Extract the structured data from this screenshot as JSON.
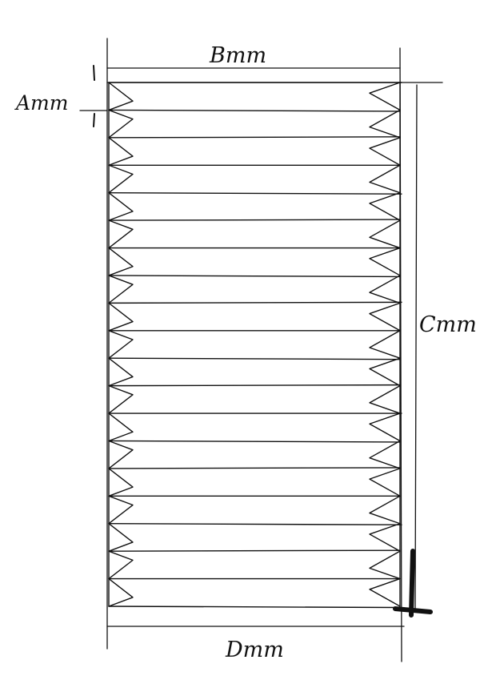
{
  "labels": {
    "a": "Amm",
    "b": "Bmm",
    "c": "Cmm",
    "d": "Dmm"
  },
  "colors": {
    "ink": "#111111",
    "paper": "#ffffff"
  }
}
